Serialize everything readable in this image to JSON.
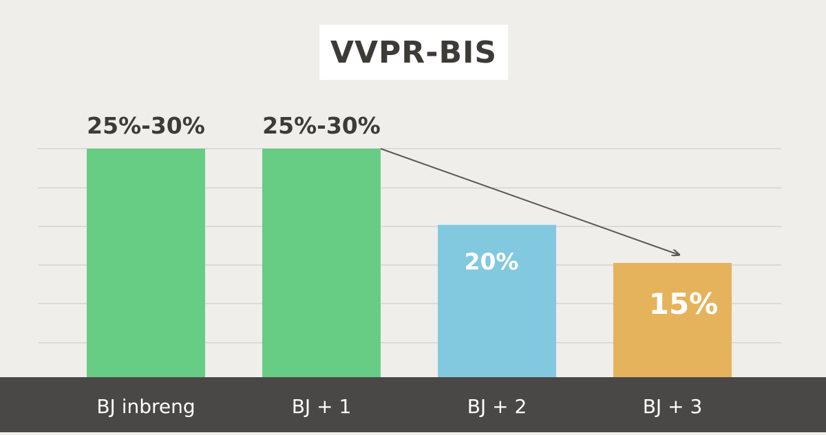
{
  "chart_data": {
    "type": "bar",
    "title": "VVPR-BIS",
    "categories": [
      "BJ inbreng",
      "BJ + 1",
      "BJ + 2",
      "BJ + 3"
    ],
    "values": [
      30,
      30,
      20,
      15
    ],
    "value_labels": [
      "25%-30%",
      "25%-30%",
      "20%",
      "15%"
    ],
    "ylim": [
      0,
      30
    ],
    "grid": true,
    "annotations": [
      "arrow from the top of BJ + 1 down to the top of BJ + 3 (decreasing trend)"
    ]
  },
  "colors": {
    "background": "#efeeeb",
    "gridline": "#d4d3cf",
    "axis_band": "#4a4846",
    "axis_text": "#ffffff",
    "title_box": "#ffffff",
    "title_text": "#3d3b37",
    "label_dark": "#3d3b37",
    "label_light": "#ffffff",
    "arrow": "#5a5854",
    "bars": [
      "#67cc84",
      "#67cc84",
      "#82c9e0",
      "#e5b35c"
    ]
  }
}
